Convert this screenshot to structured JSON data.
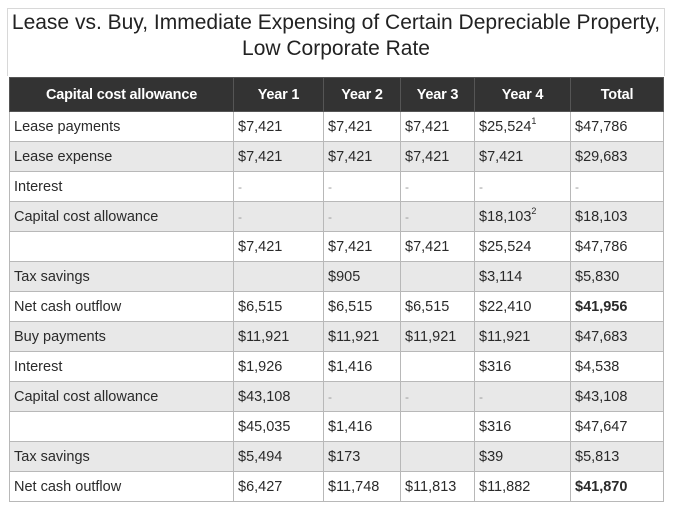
{
  "title": "Lease vs. Buy, Immediate Expensing of Certain Depreciable Property, Low Corporate Rate",
  "columns": [
    "Capital cost allowance",
    "Year 1",
    "Year 2",
    "Year 3",
    "Year 4",
    "Total"
  ],
  "rows": [
    {
      "label": "Lease payments",
      "cells": [
        "$7,421",
        "$7,421",
        "$7,421",
        "$25,524",
        "$47,786"
      ],
      "sup": [
        "",
        "",
        "",
        "1",
        ""
      ]
    },
    {
      "label": "Lease expense",
      "cells": [
        "$7,421",
        "$7,421",
        "$7,421",
        "$7,421",
        "$29,683"
      ],
      "sup": [
        "",
        "",
        "",
        "",
        ""
      ]
    },
    {
      "label": "Interest",
      "cells": [
        "-",
        "-",
        "-",
        "-",
        "-"
      ],
      "sup": [
        "",
        "",
        "",
        "",
        ""
      ]
    },
    {
      "label": "Capital cost allowance",
      "cells": [
        "-",
        "-",
        "-",
        "$18,103",
        "$18,103"
      ],
      "sup": [
        "",
        "",
        "",
        "2",
        ""
      ]
    },
    {
      "label": "",
      "cells": [
        "$7,421",
        "$7,421",
        "$7,421",
        "$25,524",
        "$47,786"
      ],
      "sup": [
        "",
        "",
        "",
        "",
        ""
      ]
    },
    {
      "label": "Tax savings",
      "cells": [
        "",
        "$905",
        "",
        "$3,114",
        "$5,830"
      ],
      "sup": [
        "",
        "",
        "",
        "",
        ""
      ]
    },
    {
      "label": "Net cash outflow",
      "cells": [
        "$6,515",
        "$6,515",
        "$6,515",
        "$22,410",
        "$41,956"
      ],
      "sup": [
        "",
        "",
        "",
        "",
        ""
      ]
    },
    {
      "label": "Buy payments",
      "cells": [
        "$11,921",
        "$11,921",
        "$11,921",
        "$11,921",
        "$47,683"
      ],
      "sup": [
        "",
        "",
        "",
        "",
        ""
      ]
    },
    {
      "label": "Interest",
      "cells": [
        "$1,926",
        "$1,416",
        "",
        "$316",
        "$4,538"
      ],
      "sup": [
        "",
        "",
        "",
        "",
        ""
      ]
    },
    {
      "label": "Capital cost allowance",
      "cells": [
        "$43,108",
        "-",
        "-",
        "-",
        "$43,108"
      ],
      "sup": [
        "",
        "",
        "",
        "",
        ""
      ]
    },
    {
      "label": "",
      "cells": [
        "$45,035",
        "$1,416",
        "",
        "$316",
        "$47,647"
      ],
      "sup": [
        "",
        "",
        "",
        "",
        ""
      ]
    },
    {
      "label": "Tax savings",
      "cells": [
        "$5,494",
        "$173",
        "",
        "$39",
        "$5,813"
      ],
      "sup": [
        "",
        "",
        "",
        "",
        ""
      ]
    },
    {
      "label": "Net cash outflow",
      "cells": [
        "$6,427",
        "$11,748",
        "$11,813",
        "$11,882",
        "$41,870"
      ],
      "sup": [
        "",
        "",
        "",
        "",
        ""
      ]
    }
  ]
}
